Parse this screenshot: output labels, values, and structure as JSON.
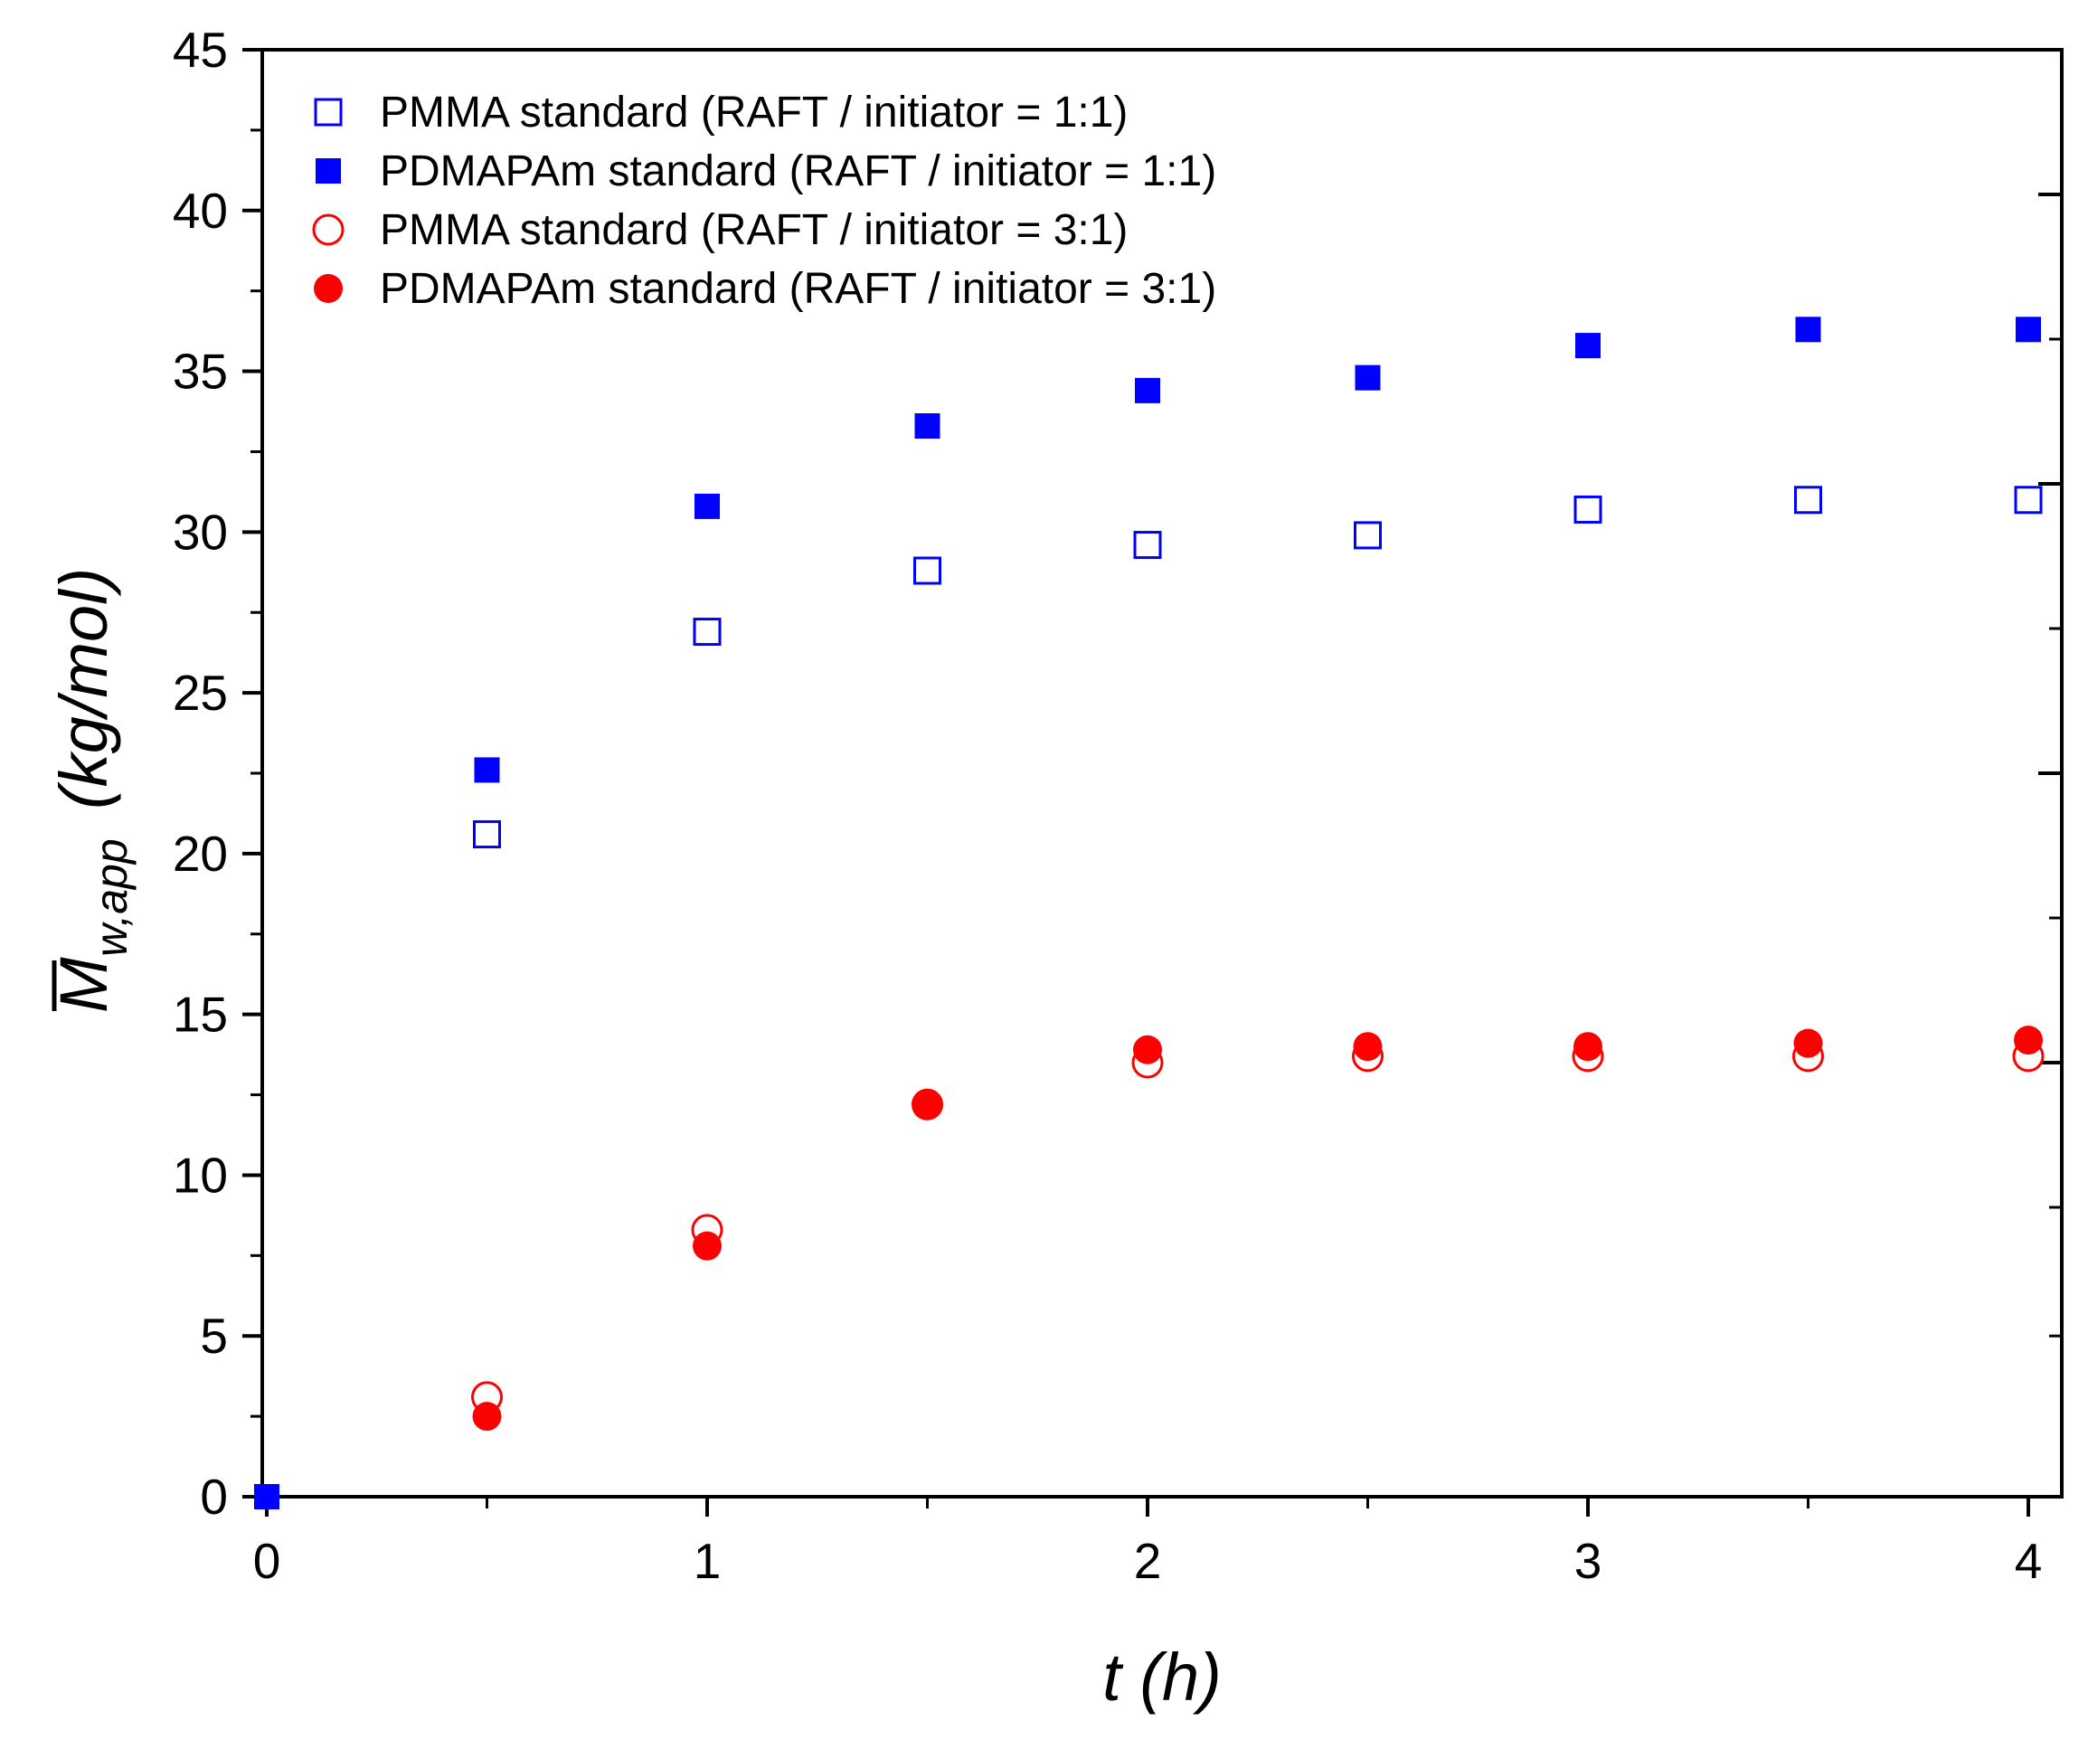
{
  "chart_data": {
    "type": "scatter",
    "xlabel": "t (h)",
    "ylabel": {
      "symbol": "M",
      "subscript": "w,app",
      "unit": "(kg/mol)"
    },
    "xlim": [
      0,
      4.1
    ],
    "ylim": [
      0,
      45
    ],
    "x_ticks": [
      0,
      1,
      2,
      3,
      4
    ],
    "y_ticks": [
      0,
      5,
      10,
      15,
      20,
      25,
      30,
      35,
      40,
      45
    ],
    "legend_position": "top-left",
    "series": [
      {
        "name": "PMMA standard (RAFT / initiator = 1:1)",
        "marker": "square-open",
        "color": "#0000ff",
        "x": [
          0.5,
          1,
          1.5,
          2,
          2.5,
          3,
          3.5,
          4
        ],
        "y": [
          20.6,
          26.9,
          28.8,
          29.6,
          29.9,
          30.7,
          31.0,
          31.0
        ]
      },
      {
        "name": "PDMAPAm standard (RAFT / initiator = 1:1)",
        "marker": "square-filled",
        "color": "#0000ff",
        "x": [
          0,
          0.5,
          1,
          1.5,
          2,
          2.5,
          3,
          3.5,
          4
        ],
        "y": [
          0,
          22.6,
          30.8,
          33.3,
          34.4,
          34.8,
          35.8,
          36.3,
          36.3
        ]
      },
      {
        "name": "PMMA standard (RAFT / initiator = 3:1)",
        "marker": "circle-open",
        "color": "#ff0000",
        "x": [
          0.5,
          1,
          1.5,
          2,
          2.5,
          3,
          3.5,
          4
        ],
        "y": [
          3.1,
          8.3,
          12.2,
          13.5,
          13.7,
          13.7,
          13.7,
          13.7
        ]
      },
      {
        "name": "PDMAPAm standard (RAFT / initiator = 3:1)",
        "marker": "circle-filled",
        "color": "#ff0000",
        "x": [
          0.5,
          1,
          1.5,
          2,
          2.5,
          3,
          3.5,
          4
        ],
        "y": [
          2.5,
          7.8,
          12.2,
          13.9,
          14.0,
          14.0,
          14.1,
          14.2
        ]
      }
    ]
  }
}
